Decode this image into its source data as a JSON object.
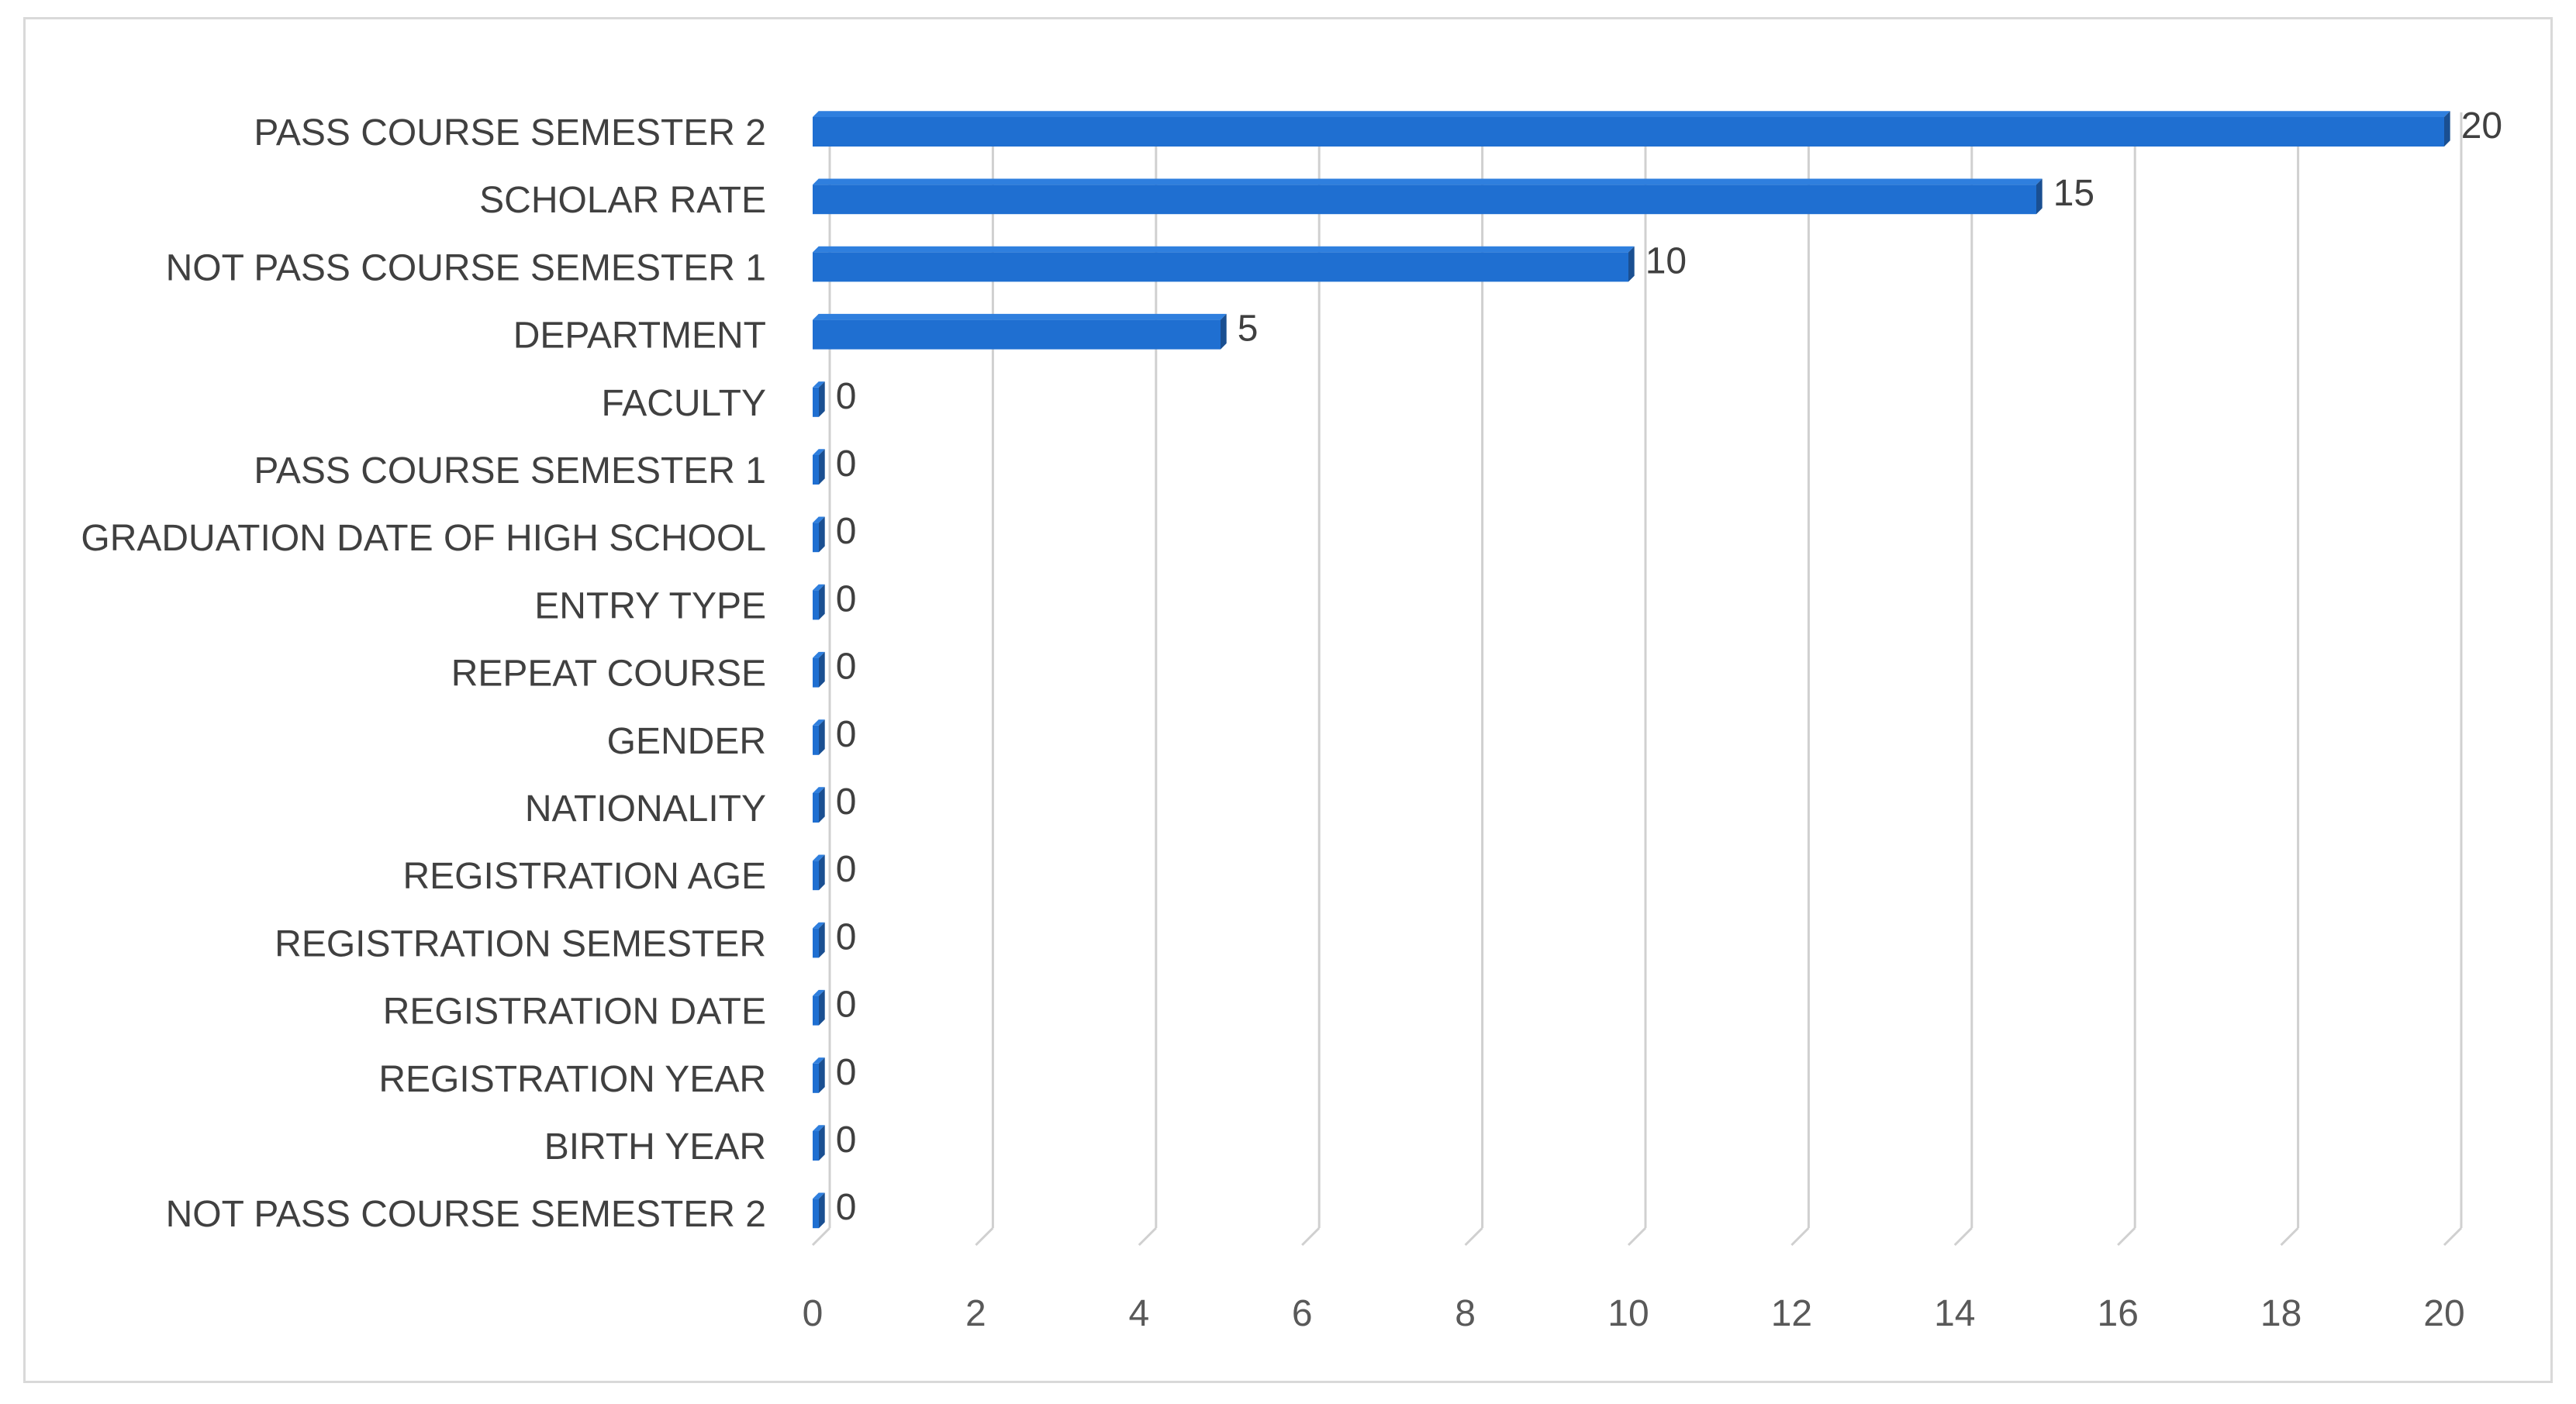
{
  "chart_data": {
    "type": "bar",
    "orientation": "horizontal",
    "style": "3d",
    "categories": [
      "PASS COURSE SEMESTER 2",
      "SCHOLAR RATE",
      "NOT PASS COURSE SEMESTER 1",
      "DEPARTMENT",
      "FACULTY",
      "PASS COURSE SEMESTER 1",
      "GRADUATION DATE OF HIGH SCHOOL",
      "ENTRY TYPE",
      "REPEAT COURSE",
      "GENDER",
      "NATIONALITY",
      "REGISTRATION AGE",
      "REGISTRATION SEMESTER",
      "REGISTRATION DATE",
      "REGISTRATION YEAR",
      "BIRTH YEAR",
      "NOT PASS COURSE SEMESTER 2"
    ],
    "values": [
      20,
      15,
      10,
      5,
      0,
      0,
      0,
      0,
      0,
      0,
      0,
      0,
      0,
      0,
      0,
      0,
      0
    ],
    "data_labels": [
      "20",
      "15",
      "10",
      "5",
      "0",
      "0",
      "0",
      "0",
      "0",
      "0",
      "0",
      "0",
      "0",
      "0",
      "0",
      "0",
      "0"
    ],
    "xlim": [
      0,
      20
    ],
    "xticks": [
      0,
      2,
      4,
      6,
      8,
      10,
      12,
      14,
      16,
      18,
      20
    ],
    "xtick_labels": [
      "0",
      "2",
      "4",
      "6",
      "8",
      "10",
      "12",
      "14",
      "16",
      "18",
      "20"
    ],
    "title": "",
    "xlabel": "",
    "ylabel": "",
    "grid": "vertical",
    "legend": "none",
    "colors": {
      "bar_front": "#1f6fd1",
      "bar_top": "#2f7fde",
      "bar_side": "#1a4f91",
      "gridline": "#d0d0d0",
      "frame": "#d9d9d9",
      "category_text": "#404040",
      "tick_text": "#595959"
    }
  }
}
